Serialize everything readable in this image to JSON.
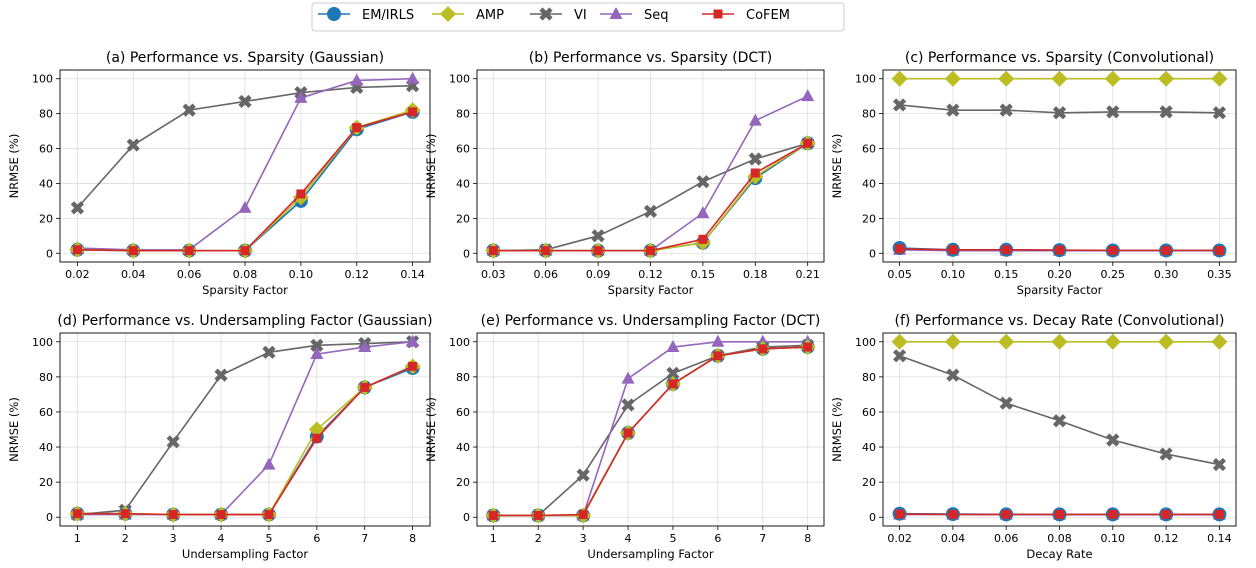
{
  "legend": {
    "entries": [
      {
        "name": "EM/IRLS",
        "color": "#1f77b4",
        "marker": "circle"
      },
      {
        "name": "AMP",
        "color": "#bcbd22",
        "marker": "diamond"
      },
      {
        "name": "VI",
        "color": "#666666",
        "marker": "x"
      },
      {
        "name": "Seq",
        "color": "#9467bd",
        "marker": "triangle"
      },
      {
        "name": "CoFEM",
        "color": "#d62728",
        "marker": "square"
      }
    ]
  },
  "chart_data": [
    {
      "type": "line",
      "title": "(a) Performance vs. Sparsity (Gaussian)",
      "xlabel": "Sparsity Factor",
      "ylabel": "NRMSE (%)",
      "x": [
        "0.02",
        "0.04",
        "0.06",
        "0.08",
        "0.10",
        "0.12",
        "0.14"
      ],
      "ylim": [
        -5,
        105
      ],
      "yticks": [
        "0",
        "20",
        "40",
        "60",
        "80",
        "100"
      ],
      "grid": true,
      "series": [
        {
          "name": "EM/IRLS",
          "values": [
            2,
            1.5,
            1.5,
            1.5,
            30,
            71,
            81
          ]
        },
        {
          "name": "AMP",
          "values": [
            2,
            1.5,
            1.5,
            1.5,
            32,
            72,
            82
          ]
        },
        {
          "name": "VI",
          "values": [
            26,
            62,
            82,
            87,
            92,
            95,
            96
          ]
        },
        {
          "name": "Seq",
          "values": [
            3,
            2,
            2,
            26,
            89,
            99,
            100
          ]
        },
        {
          "name": "CoFEM",
          "values": [
            2,
            1.5,
            1.5,
            1.5,
            34,
            72,
            81
          ]
        }
      ]
    },
    {
      "type": "line",
      "title": "(b) Performance vs. Sparsity (DCT)",
      "xlabel": "Sparsity Factor",
      "ylabel": "NRMSE (%)",
      "x": [
        "0.03",
        "0.06",
        "0.09",
        "0.12",
        "0.15",
        "0.18",
        "0.21"
      ],
      "ylim": [
        -5,
        105
      ],
      "yticks": [
        "0",
        "20",
        "40",
        "60",
        "80",
        "100"
      ],
      "grid": true,
      "series": [
        {
          "name": "EM/IRLS",
          "values": [
            1.5,
            1.5,
            1.5,
            1.5,
            6,
            43,
            63
          ]
        },
        {
          "name": "AMP",
          "values": [
            1.5,
            1.5,
            1.5,
            1.5,
            6,
            44,
            63
          ]
        },
        {
          "name": "VI",
          "values": [
            1.5,
            2,
            10,
            24,
            41,
            54,
            63
          ]
        },
        {
          "name": "Seq",
          "values": [
            1.5,
            1.5,
            1.5,
            1.5,
            23,
            76,
            90
          ]
        },
        {
          "name": "CoFEM",
          "values": [
            1.5,
            1.5,
            1.5,
            1.5,
            8,
            46,
            63
          ]
        }
      ]
    },
    {
      "type": "line",
      "title": "(c) Performance vs. Sparsity (Convolutional)",
      "xlabel": "Sparsity Factor",
      "ylabel": "NRMSE (%)",
      "x": [
        "0.05",
        "0.10",
        "0.15",
        "0.20",
        "0.25",
        "0.30",
        "0.35"
      ],
      "ylim": [
        -5,
        105
      ],
      "yticks": [
        "0",
        "20",
        "40",
        "60",
        "80",
        "100"
      ],
      "grid": true,
      "series": [
        {
          "name": "EM/IRLS",
          "values": [
            3,
            2,
            2,
            1.8,
            1.6,
            1.6,
            1.6
          ]
        },
        {
          "name": "AMP",
          "values": [
            100,
            100,
            100,
            100,
            100,
            100,
            100
          ]
        },
        {
          "name": "VI",
          "values": [
            85,
            82,
            82,
            80.5,
            81,
            81,
            80.5
          ]
        },
        {
          "name": "Seq",
          "values": [
            2,
            1.5,
            1.5,
            1.5,
            1.5,
            1.5,
            1.5
          ]
        },
        {
          "name": "CoFEM",
          "values": [
            2.5,
            2,
            2,
            1.8,
            1.6,
            1.6,
            1.6
          ]
        }
      ]
    },
    {
      "type": "line",
      "title": "(d) Performance vs. Undersampling Factor (Gaussian)",
      "xlabel": "Undersampling Factor",
      "ylabel": "NRMSE (%)",
      "x": [
        "1",
        "2",
        "3",
        "4",
        "5",
        "6",
        "7",
        "8"
      ],
      "ylim": [
        -5,
        105
      ],
      "yticks": [
        "0",
        "20",
        "40",
        "60",
        "80",
        "100"
      ],
      "grid": true,
      "series": [
        {
          "name": "EM/IRLS",
          "values": [
            2,
            2,
            1.5,
            1.5,
            1.5,
            46,
            74,
            85
          ]
        },
        {
          "name": "AMP",
          "values": [
            2,
            2,
            1.5,
            1.5,
            1.5,
            50,
            74,
            86
          ]
        },
        {
          "name": "VI",
          "values": [
            1.5,
            4,
            43,
            81,
            94,
            98,
            99,
            100
          ]
        },
        {
          "name": "Seq",
          "values": [
            1.5,
            1.5,
            1.5,
            1.5,
            30,
            93,
            97,
            100
          ]
        },
        {
          "name": "CoFEM",
          "values": [
            2,
            2,
            1.5,
            1.5,
            1.5,
            45,
            74,
            86
          ]
        }
      ]
    },
    {
      "type": "line",
      "title": "(e) Performance vs. Undersampling Factor (DCT)",
      "xlabel": "Undersampling Factor",
      "ylabel": "NRMSE (%)",
      "x": [
        "1",
        "2",
        "3",
        "4",
        "5",
        "6",
        "7",
        "8"
      ],
      "ylim": [
        -5,
        105
      ],
      "yticks": [
        "0",
        "20",
        "40",
        "60",
        "80",
        "100"
      ],
      "grid": true,
      "series": [
        {
          "name": "EM/IRLS",
          "values": [
            1,
            1,
            1,
            48,
            76,
            92,
            96,
            97
          ]
        },
        {
          "name": "AMP",
          "values": [
            1,
            1,
            1,
            48,
            76,
            92,
            96,
            97
          ]
        },
        {
          "name": "VI",
          "values": [
            1,
            1,
            24,
            64,
            82,
            92,
            97,
            98
          ]
        },
        {
          "name": "Seq",
          "values": [
            1,
            1,
            1,
            79,
            97,
            100,
            100,
            100
          ]
        },
        {
          "name": "CoFEM",
          "values": [
            1,
            1,
            1.5,
            48,
            76,
            92,
            96,
            97
          ]
        }
      ]
    },
    {
      "type": "line",
      "title": "(f) Performance vs. Decay Rate (Convolutional)",
      "xlabel": "Decay Rate",
      "ylabel": "NRMSE (%)",
      "x": [
        "0.02",
        "0.04",
        "0.06",
        "0.08",
        "0.10",
        "0.12",
        "0.14"
      ],
      "ylim": [
        -5,
        105
      ],
      "yticks": [
        "0",
        "20",
        "40",
        "60",
        "80",
        "100"
      ],
      "grid": true,
      "series": [
        {
          "name": "EM/IRLS",
          "values": [
            2,
            1.8,
            1.6,
            1.6,
            1.6,
            1.6,
            1.6
          ]
        },
        {
          "name": "AMP",
          "values": [
            100,
            100,
            100,
            100,
            100,
            100,
            100
          ]
        },
        {
          "name": "VI",
          "values": [
            92,
            81,
            65,
            55,
            44,
            36,
            30
          ]
        },
        {
          "name": "Seq",
          "values": [
            1.5,
            1.5,
            1.5,
            1.5,
            1.5,
            1.5,
            1.5
          ]
        },
        {
          "name": "CoFEM",
          "values": [
            1.8,
            1.6,
            1.6,
            1.6,
            1.6,
            1.6,
            1.6
          ]
        }
      ]
    }
  ]
}
